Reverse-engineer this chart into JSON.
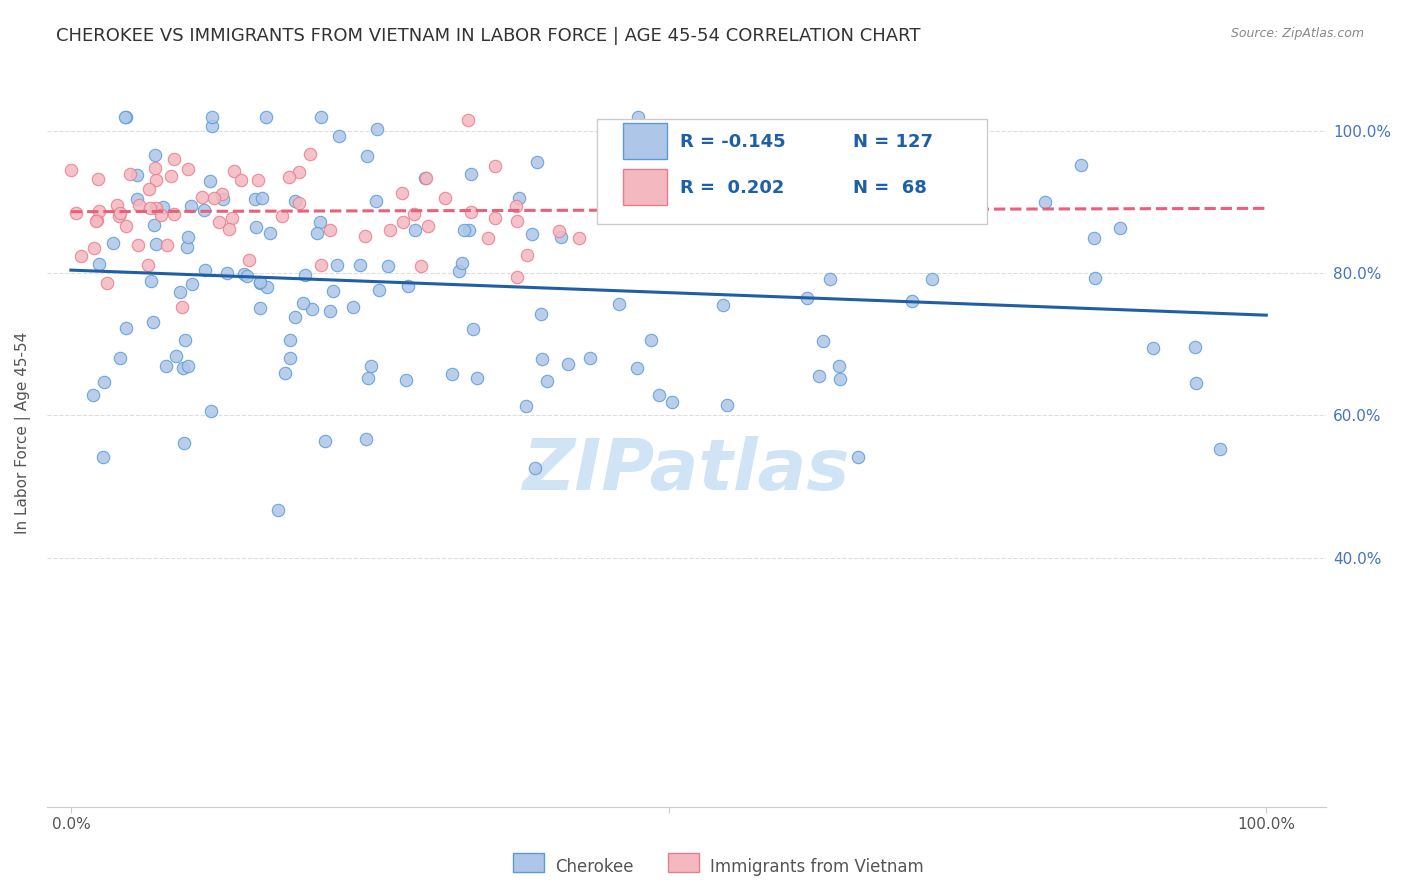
{
  "title": "CHEROKEE VS IMMIGRANTS FROM VIETNAM IN LABOR FORCE | AGE 45-54 CORRELATION CHART",
  "source": "Source: ZipAtlas.com",
  "ylabel": "In Labor Force | Age 45-54",
  "legend_entries": [
    {
      "label": "Cherokee",
      "color": "#aec6e8",
      "edge": "#5b9bd5",
      "R": "-0.145",
      "N": "127"
    },
    {
      "label": "Immigrants from Vietnam",
      "color": "#f4b8c1",
      "edge": "#e87d8a",
      "R": "0.202",
      "N": "68"
    }
  ],
  "blue_line_color": "#1f5fa6",
  "pink_line_color": "#e8607a",
  "watermark_text": "ZIPatlas",
  "watermark_color": "#d0e4f5",
  "background_color": "#ffffff",
  "grid_color": "#dddddd",
  "title_color": "#333333",
  "axis_label_color": "#555555",
  "right_axis_color": "#4472c4",
  "seed": 42,
  "cherokee_R": -0.145,
  "cherokee_N": 127,
  "vietnam_R": 0.202,
  "vietnam_N": 68
}
